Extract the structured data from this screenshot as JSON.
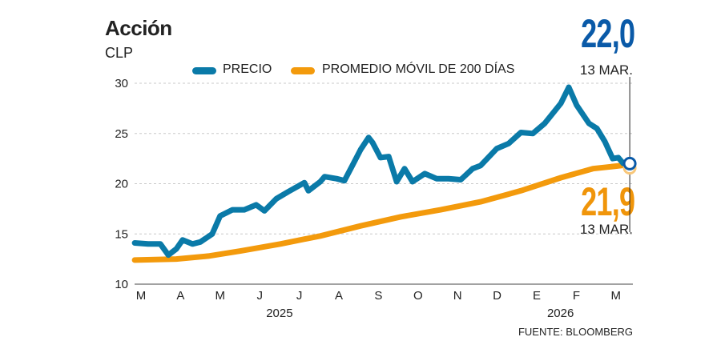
{
  "header": {
    "title": "Acción",
    "unit": "CLP"
  },
  "callouts": {
    "price_value": "22,0",
    "price_date": "13 MAR.",
    "ma_value": "21,9",
    "ma_date": "13 MAR."
  },
  "source": "FUENTE: BLOOMBERG",
  "chart_data": {
    "type": "line",
    "title": "Acción",
    "ylabel": "CLP",
    "ylim": [
      10,
      30
    ],
    "yticks": [
      "10",
      "15",
      "20",
      "25",
      "30"
    ],
    "xticks": [
      "M",
      "A",
      "M",
      "J",
      "J",
      "A",
      "S",
      "O",
      "N",
      "D",
      "E",
      "F",
      "M"
    ],
    "year_labels": [
      {
        "label": "2025",
        "month": 3.5
      },
      {
        "label": "2026",
        "month": 10.6
      }
    ],
    "grid": true,
    "legend": "top",
    "x_unit": "months since March 2025",
    "colors": {
      "price": "#0a7aa8",
      "ma": "#f39a0c",
      "marker": "#0a5aa8"
    },
    "series": [
      {
        "name": "PRECIO",
        "points": [
          [
            -0.16,
            14.1
          ],
          [
            0.18,
            14.0
          ],
          [
            0.49,
            14.0
          ],
          [
            0.69,
            12.9
          ],
          [
            0.89,
            13.5
          ],
          [
            1.05,
            14.4
          ],
          [
            1.3,
            14.0
          ],
          [
            1.5,
            14.2
          ],
          [
            1.8,
            15.0
          ],
          [
            2.0,
            16.8
          ],
          [
            2.31,
            17.4
          ],
          [
            2.61,
            17.4
          ],
          [
            2.91,
            17.9
          ],
          [
            3.12,
            17.3
          ],
          [
            3.42,
            18.5
          ],
          [
            3.72,
            19.2
          ],
          [
            4.13,
            20.1
          ],
          [
            4.23,
            19.3
          ],
          [
            4.53,
            20.2
          ],
          [
            4.64,
            20.7
          ],
          [
            4.94,
            20.5
          ],
          [
            5.14,
            20.3
          ],
          [
            5.34,
            21.8
          ],
          [
            5.55,
            23.4
          ],
          [
            5.75,
            24.6
          ],
          [
            5.85,
            24.1
          ],
          [
            6.05,
            22.6
          ],
          [
            6.26,
            22.7
          ],
          [
            6.46,
            20.2
          ],
          [
            6.66,
            21.5
          ],
          [
            6.86,
            20.2
          ],
          [
            7.17,
            21.0
          ],
          [
            7.47,
            20.5
          ],
          [
            7.77,
            20.5
          ],
          [
            8.08,
            20.4
          ],
          [
            8.38,
            21.5
          ],
          [
            8.58,
            21.8
          ],
          [
            8.99,
            23.5
          ],
          [
            9.29,
            24.0
          ],
          [
            9.6,
            25.1
          ],
          [
            9.9,
            25.0
          ],
          [
            10.2,
            26.0
          ],
          [
            10.61,
            28.0
          ],
          [
            10.81,
            29.6
          ],
          [
            11.01,
            27.8
          ],
          [
            11.32,
            26.0
          ],
          [
            11.52,
            25.5
          ],
          [
            11.72,
            24.2
          ],
          [
            11.92,
            22.5
          ],
          [
            12.06,
            22.6
          ],
          [
            12.19,
            22.0
          ],
          [
            12.35,
            22.0
          ]
        ]
      },
      {
        "name": "PROMEDIO MÓVIL DE 200 DÍAS",
        "points": [
          [
            -0.16,
            12.4
          ],
          [
            0.89,
            12.5
          ],
          [
            1.7,
            12.8
          ],
          [
            2.51,
            13.3
          ],
          [
            3.52,
            14.0
          ],
          [
            4.53,
            14.8
          ],
          [
            5.55,
            15.8
          ],
          [
            6.56,
            16.7
          ],
          [
            7.57,
            17.4
          ],
          [
            8.58,
            18.2
          ],
          [
            9.6,
            19.3
          ],
          [
            10.61,
            20.6
          ],
          [
            11.42,
            21.5
          ],
          [
            12.35,
            21.9
          ]
        ]
      }
    ]
  }
}
